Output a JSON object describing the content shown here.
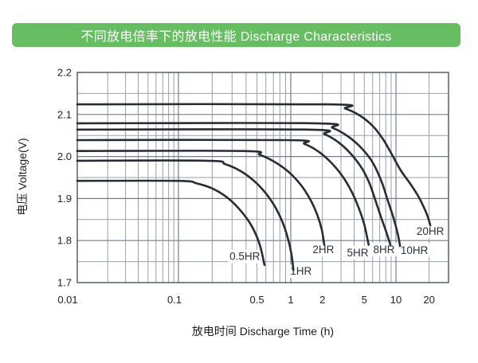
{
  "header": {
    "title": "不同放电倍率下的放电性能 Discharge Characteristics",
    "bg_color": "#67bd61",
    "text_color": "#ffffff"
  },
  "chart_data": {
    "type": "line",
    "title": "不同放电倍率下的放电性能 Discharge Characteristics",
    "xlabel": "放电时间  Discharge Time (h)",
    "ylabel": "电压  Voltage(V)",
    "x_scale": "log",
    "xlim": [
      0.01,
      30
    ],
    "ylim": [
      1.7,
      2.2
    ],
    "grid": "major and minor, both axes",
    "legend_position": "inline labels at curve ends",
    "x_ticks": [
      {
        "v": 0.01,
        "label": "0.01",
        "dx": -12
      },
      {
        "v": 0.1,
        "label": "0.1",
        "dx": -5
      },
      {
        "v": 0.5,
        "label": "0.5",
        "dx": 0
      },
      {
        "v": 1,
        "label": "1",
        "dx": 0
      },
      {
        "v": 2,
        "label": "2",
        "dx": 0
      },
      {
        "v": 5,
        "label": "5",
        "dx": 0
      },
      {
        "v": 10,
        "label": "10",
        "dx": 0
      },
      {
        "v": 20,
        "label": "20",
        "dx": 0
      }
    ],
    "y_ticks": [
      {
        "v": 2.2,
        "label": "2.2"
      },
      {
        "v": 2.1,
        "label": "2.1"
      },
      {
        "v": 2.0,
        "label": "2.0"
      },
      {
        "v": 1.9,
        "label": "1.9"
      },
      {
        "v": 1.8,
        "label": "1.8"
      },
      {
        "v": 1.7,
        "label": "1.7"
      }
    ],
    "x_gridlines": {
      "minor": [
        0.02,
        0.03,
        0.04,
        0.05,
        0.06,
        0.07,
        0.08,
        0.09,
        0.2,
        0.3,
        0.4,
        0.5,
        0.6,
        0.7,
        0.8,
        0.9,
        2,
        3,
        4,
        5,
        6,
        7,
        8,
        9,
        20
      ],
      "major": [
        0.1,
        1,
        10
      ]
    },
    "y_gridlines": {
      "minor": [
        1.75,
        1.85,
        1.95,
        2.05,
        2.15
      ],
      "major": [
        1.8,
        1.9,
        2.0,
        2.1
      ]
    },
    "series": [
      {
        "name": "0.5HR",
        "label_at": [
          0.39,
          1.763
        ],
        "points": [
          [
            0.01,
            1.942
          ],
          [
            0.1,
            1.942
          ],
          [
            0.145,
            1.936
          ],
          [
            0.2,
            1.924
          ],
          [
            0.27,
            1.903
          ],
          [
            0.34,
            1.878
          ],
          [
            0.42,
            1.847
          ],
          [
            0.49,
            1.814
          ],
          [
            0.54,
            1.782
          ],
          [
            0.583,
            1.742
          ]
        ]
      },
      {
        "name": "1HR",
        "label_at": [
          1.25,
          1.728
        ],
        "points": [
          [
            0.01,
            1.99
          ],
          [
            0.18,
            1.99
          ],
          [
            0.26,
            1.982
          ],
          [
            0.36,
            1.965
          ],
          [
            0.48,
            1.94
          ],
          [
            0.61,
            1.91
          ],
          [
            0.74,
            1.876
          ],
          [
            0.85,
            1.842
          ],
          [
            0.94,
            1.806
          ],
          [
            1.01,
            1.77
          ],
          [
            1.06,
            1.73
          ]
        ]
      },
      {
        "name": "2HR",
        "label_at": [
          2.04,
          1.78
        ],
        "points": [
          [
            0.01,
            2.013
          ],
          [
            0.38,
            2.013
          ],
          [
            0.53,
            2.004
          ],
          [
            0.72,
            1.987
          ],
          [
            0.97,
            1.962
          ],
          [
            1.25,
            1.932
          ],
          [
            1.53,
            1.898
          ],
          [
            1.78,
            1.862
          ],
          [
            1.97,
            1.826
          ],
          [
            2.08,
            1.79
          ]
        ]
      },
      {
        "name": "5HR",
        "label_at": [
          4.33,
          1.772
        ],
        "points": [
          [
            0.01,
            2.039
          ],
          [
            0.95,
            2.039
          ],
          [
            1.35,
            2.03
          ],
          [
            1.85,
            2.011
          ],
          [
            2.45,
            1.984
          ],
          [
            3.1,
            1.953
          ],
          [
            3.8,
            1.916
          ],
          [
            4.45,
            1.876
          ],
          [
            5.0,
            1.838
          ],
          [
            5.5,
            1.79
          ]
        ]
      },
      {
        "name": "8HR",
        "label_at": [
          7.7,
          1.78
        ],
        "points": [
          [
            0.01,
            2.064
          ],
          [
            1.45,
            2.064
          ],
          [
            2.1,
            2.053
          ],
          [
            2.9,
            2.032
          ],
          [
            3.8,
            2.004
          ],
          [
            4.8,
            1.97
          ],
          [
            5.6,
            1.936
          ],
          [
            6.3,
            1.9
          ],
          [
            7.2,
            1.856
          ],
          [
            8.0,
            1.824
          ],
          [
            8.85,
            1.79
          ]
        ]
      },
      {
        "name": "10HR",
        "label_at": [
          14.7,
          1.778
        ],
        "points": [
          [
            0.01,
            2.079
          ],
          [
            1.7,
            2.079
          ],
          [
            2.5,
            2.068
          ],
          [
            3.5,
            2.048
          ],
          [
            4.7,
            2.02
          ],
          [
            6.0,
            1.986
          ],
          [
            7.3,
            1.94
          ],
          [
            8.3,
            1.898
          ],
          [
            9.5,
            1.853
          ],
          [
            10.4,
            1.815
          ],
          [
            10.9,
            1.787
          ]
        ]
      },
      {
        "name": "20HR",
        "label_at": [
          20.5,
          1.823
        ],
        "points": [
          [
            0.01,
            2.124
          ],
          [
            2.3,
            2.124
          ],
          [
            3.3,
            2.114
          ],
          [
            4.5,
            2.098
          ],
          [
            6.0,
            2.073
          ],
          [
            7.5,
            2.042
          ],
          [
            9.0,
            2.008
          ],
          [
            11.0,
            1.968
          ],
          [
            13.5,
            1.935
          ],
          [
            16.0,
            1.905
          ],
          [
            18.0,
            1.878
          ],
          [
            19.5,
            1.856
          ],
          [
            20.5,
            1.836
          ]
        ]
      }
    ],
    "colors": {
      "curve": "#272c35",
      "grid_minor": "#9aa0a8",
      "grid_major": "#767e88",
      "frame": "#4b545e",
      "tick_text": "#222222",
      "label_text": "#2b313b"
    }
  }
}
